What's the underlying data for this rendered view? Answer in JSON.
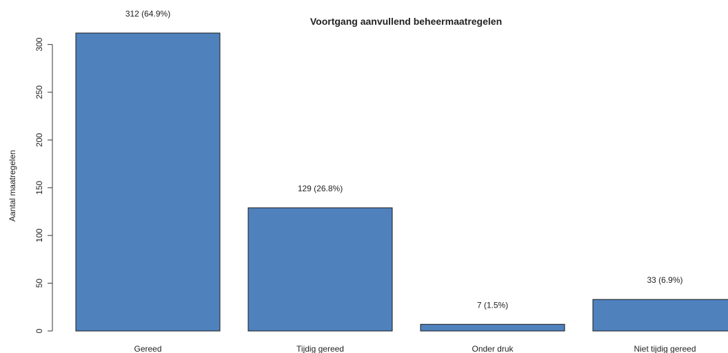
{
  "chart_data": {
    "type": "bar",
    "title": "Voortgang aanvullend beheermaatregelen",
    "xlabel": "",
    "ylabel": "Aantal maatregelen",
    "categories": [
      "Gereed",
      "Tijdig gereed",
      "Onder druk",
      "Niet tijdig gereed"
    ],
    "values": [
      312,
      129,
      7,
      33
    ],
    "data_labels": [
      "312 (64.9%)",
      "129 (26.8%)",
      "7 (1.5%)",
      "33 (6.9%)"
    ],
    "ylim": [
      0,
      312
    ],
    "yticks": [
      0,
      50,
      100,
      150,
      200,
      250,
      300
    ],
    "grid": false,
    "legend": "none",
    "bar_color": "#4f81bd",
    "bar_stroke": "#1a1a1a"
  }
}
